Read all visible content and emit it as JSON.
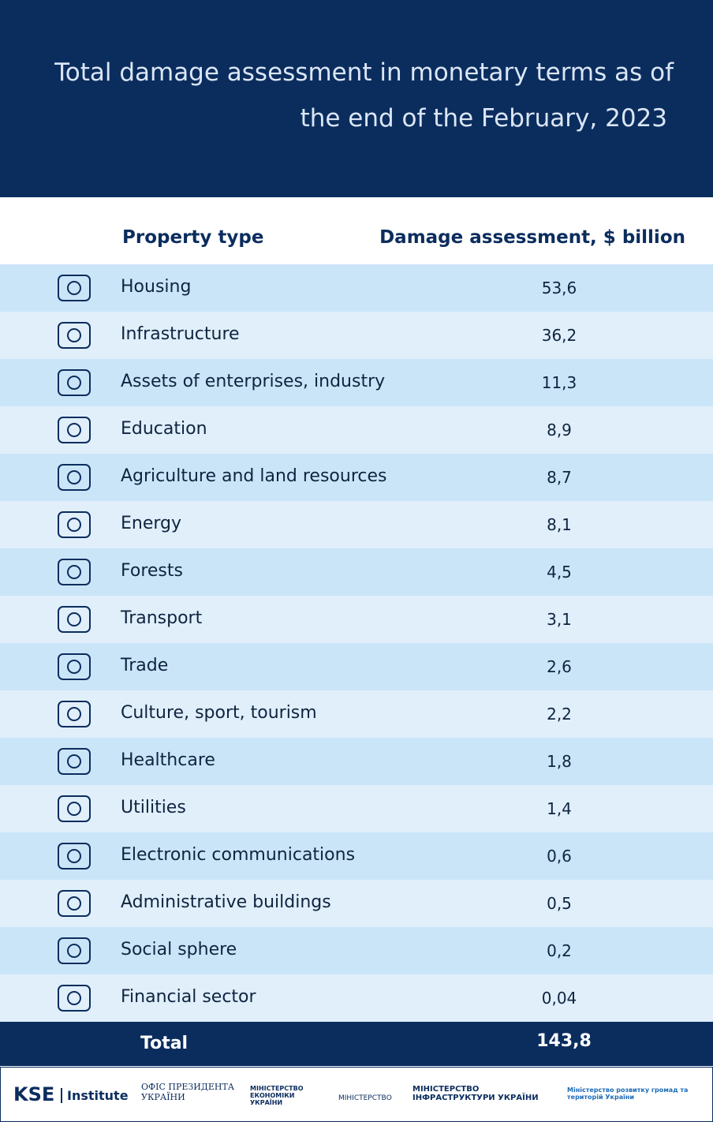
{
  "header": {
    "title_line1": "Total damage assessment in monetary terms as of",
    "title_line2": "the end of the February, 2023"
  },
  "table": {
    "columns": [
      "Property type",
      "Damage assessment, $ billion"
    ],
    "rows": [
      [
        "Housing",
        "53,6"
      ],
      [
        "Infrastructure",
        "36,2"
      ],
      [
        "Assets of enterprises, industry",
        "11,3"
      ],
      [
        "Education",
        "8,9"
      ],
      [
        "Agriculture and land resources",
        "8,7"
      ],
      [
        "Energy",
        "8,1"
      ],
      [
        "Forests",
        "4,5"
      ],
      [
        "Transport",
        "3,1"
      ],
      [
        "Trade",
        "2,6"
      ],
      [
        "Culture, sport, tourism",
        "2,2"
      ],
      [
        "Healthcare",
        "1,8"
      ],
      [
        "Utilities",
        "1,4"
      ],
      [
        "Electronic communications",
        "0,6"
      ],
      [
        "Administrative buildings",
        "0,5"
      ],
      [
        "Social sphere",
        "0,2"
      ],
      [
        "Financial sector",
        "0,04"
      ]
    ],
    "total": [
      "Total",
      "143,8"
    ]
  },
  "footer": {
    "logos": [
      "KSE",
      "Institute",
      "ОФІС ПРЕЗИДЕНТА УКРАЇНИ",
      "МІНІСТЕРСТВО ЕКОНОМІКИ УКРАЇНИ",
      "МІНІСТЕРСТВО",
      "МІНІСТЕРСТВО ІНФРАСТРУКТУРИ УКРАЇНИ",
      "Міністерство розвитку громад та територій України"
    ]
  }
}
